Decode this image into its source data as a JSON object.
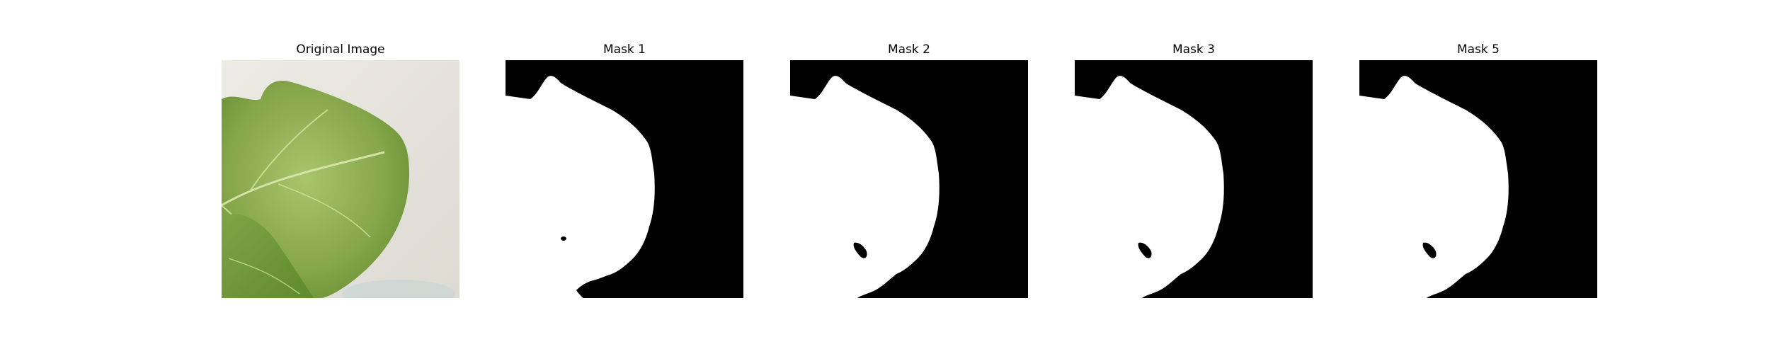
{
  "panels": [
    {
      "title": "Original Image",
      "kind": "photo"
    },
    {
      "title": "Mask 1",
      "kind": "mask"
    },
    {
      "title": "Mask 2",
      "kind": "mask"
    },
    {
      "title": "Mask 3",
      "kind": "mask"
    },
    {
      "title": "Mask 5",
      "kind": "mask"
    }
  ],
  "colors": {
    "background": "#ffffff",
    "mask_fg": "#ffffff",
    "mask_bg": "#000000",
    "leaf_main": "#8fae55",
    "leaf_dark": "#5f8a2e",
    "backdrop": "#e6e4dc"
  }
}
